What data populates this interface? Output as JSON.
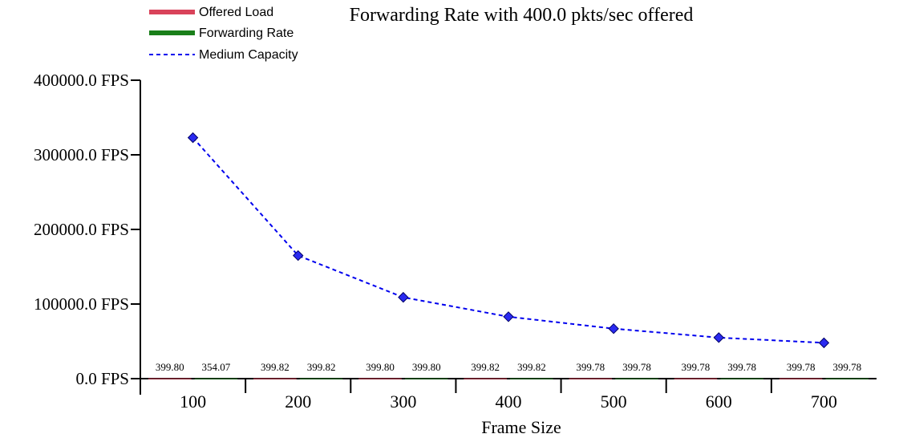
{
  "chart_data": {
    "type": "bar",
    "title": "Forwarding Rate with 400.0 pkts/sec offered",
    "xlabel": "Frame Size",
    "ylabel": "",
    "categories": [
      "100",
      "200",
      "300",
      "400",
      "500",
      "600",
      "700"
    ],
    "ylim": [
      0,
      400000
    ],
    "y_ticks": [
      "0.0 FPS",
      "100000.0 FPS",
      "200000.0 FPS",
      "300000.0 FPS",
      "400000.0 FPS"
    ],
    "y_tick_values": [
      0,
      100000,
      200000,
      300000,
      400000
    ],
    "legend_position": "top-left",
    "grid": false,
    "series": [
      {
        "name": "Offered Load",
        "kind": "bar",
        "color": "#d9435a",
        "values": [
          399.8,
          399.82,
          399.8,
          399.82,
          399.78,
          399.78,
          399.78
        ],
        "labels": [
          "399.80",
          "399.82",
          "399.80",
          "399.82",
          "399.78",
          "399.78",
          "399.78"
        ]
      },
      {
        "name": "Forwarding Rate",
        "kind": "bar",
        "color": "#1a7f1a",
        "values": [
          354.07,
          399.82,
          399.8,
          399.82,
          399.78,
          399.78,
          399.78
        ],
        "labels": [
          "354.07",
          "399.82",
          "399.80",
          "399.82",
          "399.78",
          "399.78",
          "399.78"
        ]
      },
      {
        "name": "Medium Capacity",
        "kind": "line",
        "style": "dashed",
        "marker": "diamond",
        "color": "#0000ee",
        "values": [
          323000,
          165000,
          109000,
          83000,
          67000,
          55000,
          48000
        ]
      }
    ]
  }
}
